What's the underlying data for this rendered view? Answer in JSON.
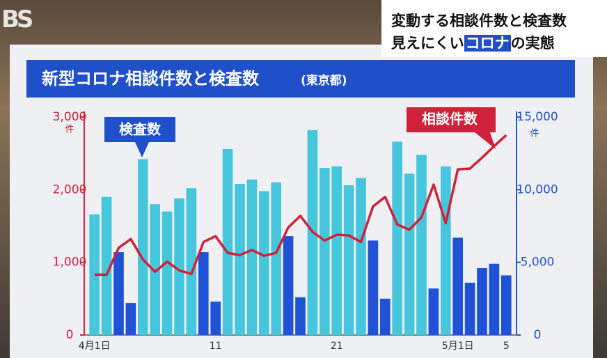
{
  "logo": "BS",
  "header": {
    "line1": "変動する相談件数と検査数",
    "line2": [
      "見えにくい",
      "コロナ",
      "の実態"
    ]
  },
  "chart_data": {
    "type": "combo",
    "title": "新型コロナ相談件数と検査数",
    "subtitle": "(東京都)",
    "categories": [
      "4月1日",
      null,
      null,
      null,
      null,
      null,
      null,
      null,
      null,
      null,
      "11",
      null,
      null,
      null,
      null,
      null,
      null,
      null,
      null,
      null,
      "21",
      null,
      null,
      null,
      null,
      null,
      null,
      null,
      null,
      null,
      "5月1日",
      null,
      null,
      null,
      "5"
    ],
    "y_unit": "件",
    "y2_unit": "件",
    "ylim": [
      0,
      3000
    ],
    "yticks": [
      0,
      {
        "value": 1000,
        "label": "1,000"
      },
      {
        "value": 2000,
        "label": "2,000"
      },
      {
        "value": 3000,
        "label": "3,000"
      }
    ],
    "y2lim": [
      0,
      15000
    ],
    "y2ticks": [
      0,
      {
        "value": 5000,
        "label": "5,000"
      },
      {
        "value": 10000,
        "label": "10,000"
      },
      {
        "value": 15000,
        "label": "15,000"
      }
    ],
    "series": [
      {
        "name": "検査数",
        "type": "bar",
        "axis": "y2",
        "colors": [
          "#46c6dc",
          "#46c6dc",
          "#1f52d6",
          "#1f52d6",
          "#46c6dc",
          "#46c6dc",
          "#46c6dc",
          "#46c6dc",
          "#46c6dc",
          "#1f52d6",
          "#1f52d6",
          "#46c6dc",
          "#46c6dc",
          "#46c6dc",
          "#46c6dc",
          "#46c6dc",
          "#1f52d6",
          "#1f52d6",
          "#46c6dc",
          "#46c6dc",
          "#46c6dc",
          "#46c6dc",
          "#46c6dc",
          "#1f52d6",
          "#1f52d6",
          "#46c6dc",
          "#46c6dc",
          "#46c6dc",
          "#1f52d6",
          "#46c6dc",
          "#1f52d6",
          "#1f52d6",
          "#1f52d6",
          "#1f52d6",
          "#1f52d6"
        ],
        "values": [
          8300,
          9500,
          5700,
          2200,
          12100,
          9000,
          8500,
          9400,
          10100,
          5700,
          2300,
          12800,
          10400,
          10700,
          9900,
          10500,
          6800,
          2600,
          14100,
          11500,
          11600,
          10300,
          10800,
          6500,
          2500,
          13300,
          11100,
          12400,
          3200,
          11600,
          6700,
          3600,
          4600,
          4900,
          4100
        ]
      },
      {
        "name": "相談件数",
        "type": "line",
        "color": "#d0213a",
        "values": [
          830,
          830,
          1200,
          1320,
          1040,
          870,
          1010,
          890,
          840,
          1280,
          1360,
          1130,
          1100,
          1170,
          1090,
          1130,
          1480,
          1640,
          1420,
          1300,
          1380,
          1370,
          1280,
          1770,
          1900,
          1520,
          1450,
          1620,
          2070,
          1540,
          2280,
          2290,
          2440,
          2600,
          2750
        ]
      }
    ]
  }
}
